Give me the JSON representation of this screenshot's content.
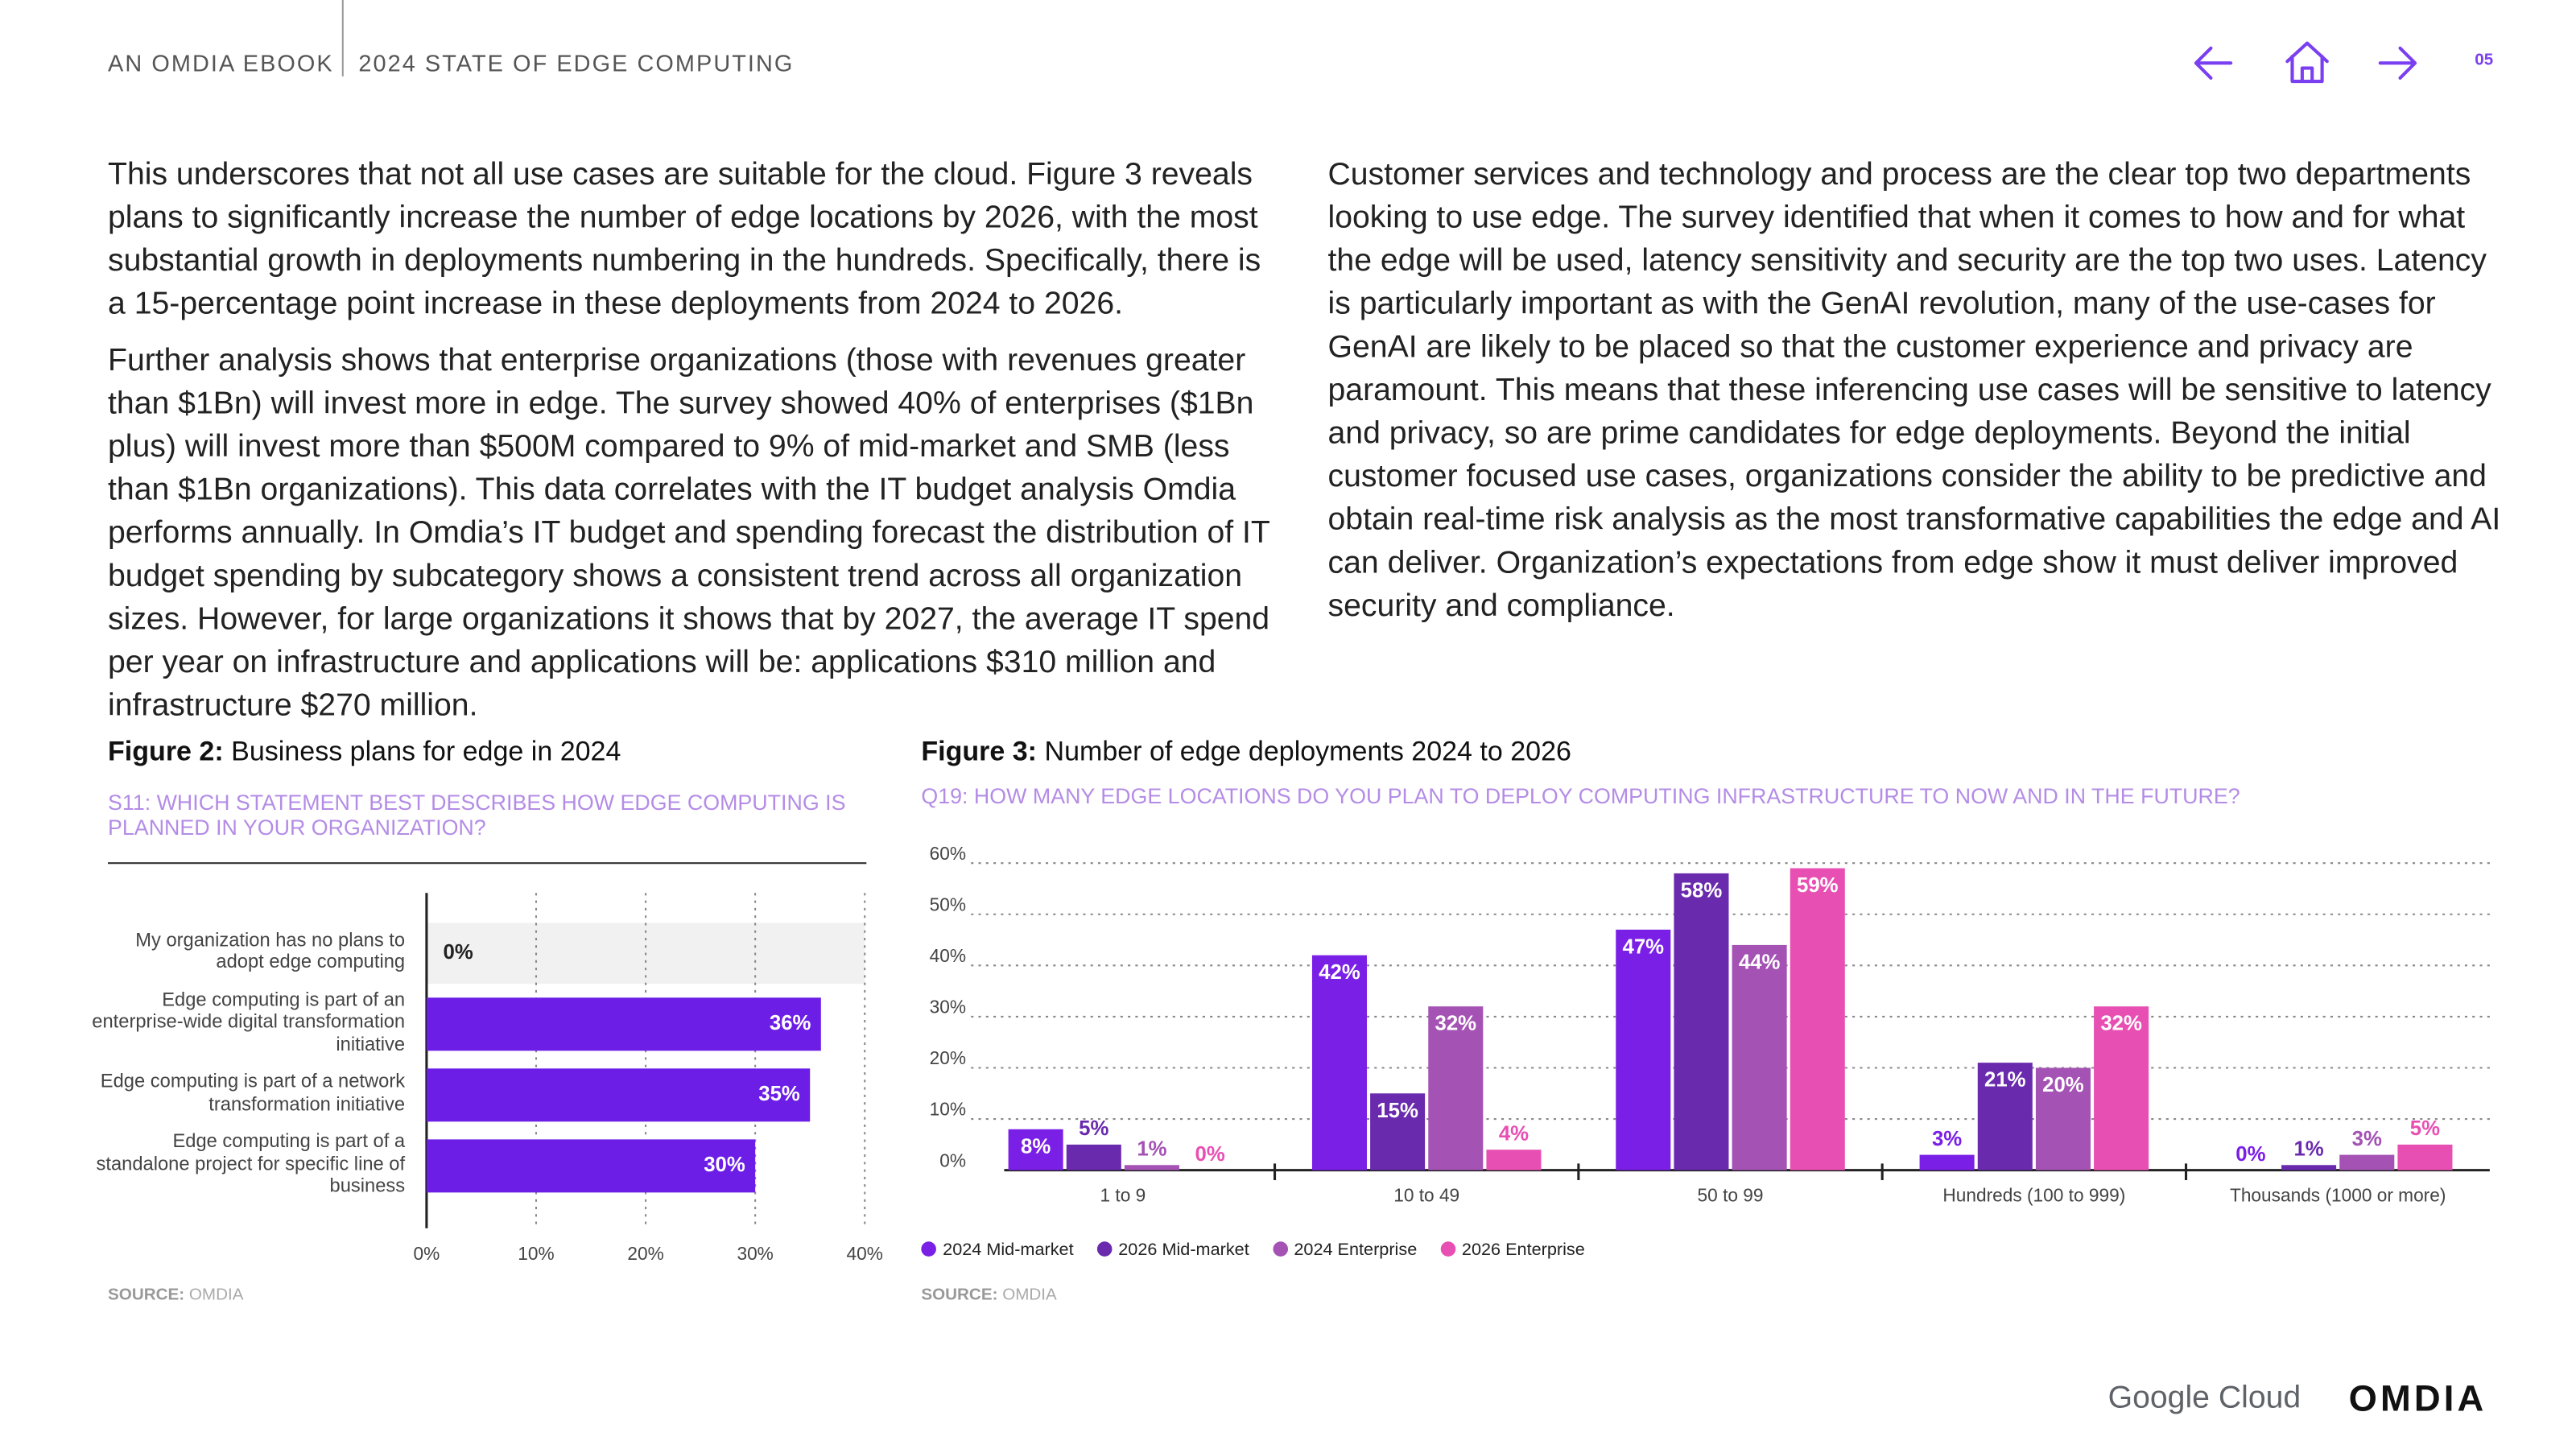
{
  "header": {
    "publisher": "AN OMDIA EBOOK",
    "title": "2024 STATE OF EDGE COMPUTING",
    "page": "05"
  },
  "body": {
    "left": [
      "This underscores that not all use cases are suitable for the cloud. Figure 3 reveals plans to significantly increase the number of edge locations by 2026, with the most substantial growth in deployments numbering in the hundreds. Specifically, there is a 15-percentage point increase in these deployments from 2024 to 2026.",
      "Further analysis shows that enterprise organizations (those with revenues greater than $1Bn) will invest more in edge. The survey showed 40% of enterprises ($1Bn plus) will invest more than $500M compared to 9% of mid-market and SMB (less than $1Bn organizations). This data correlates with the IT budget analysis Omdia performs annually. In Omdia’s IT budget and spending forecast the distribution of IT budget spending by subcategory shows a consistent trend across all organization sizes. However, for large organizations it shows that by 2027, the average IT spend per year on infrastructure and applications will be: applications $310 million and infrastructure $270 million."
    ],
    "right": [
      "Customer services and technology and process are the clear top two departments looking to use edge. The survey identified that when it comes to how and for what the edge will be used, latency sensitivity and security are the top two uses. Latency is particularly important as with the GenAI revolution, many of the use-cases for GenAI are likely to be placed so that the customer experience and privacy are paramount. This means that these inferencing use cases will be sensitive to latency and privacy, so are prime candidates for edge deployments. Beyond the initial customer focused use cases, organizations consider the ability to be predictive and obtain real-time risk analysis as the most transformative capabilities the edge and AI can deliver. Organization’s expectations from edge show it must deliver improved security and compliance."
    ]
  },
  "chart_data": [
    {
      "type": "hbar",
      "figure_label": "Figure 2:",
      "title": "Business plans for edge in 2024",
      "subtitle": "S11: WHICH STATEMENT BEST DESCRIBES HOW EDGE COMPUTING IS PLANNED IN YOUR ORGANIZATION?",
      "categories": [
        "My organization has no plans to adopt edge computing",
        "Edge computing is part of an enterprise-wide digital transformation initiative",
        "Edge computing is part of a network transformation initiative",
        "Edge computing is part of a standalone project for specific line of business"
      ],
      "values": [
        0,
        36,
        35,
        30
      ],
      "value_labels": [
        "0%",
        "36%",
        "35%",
        "30%"
      ],
      "color": "#6c1ee6",
      "xlim": [
        0,
        40
      ],
      "xticks": [
        {
          "value": 0,
          "label": "0%"
        },
        {
          "value": 10,
          "label": "10%"
        },
        {
          "value": 20,
          "label": "20%"
        },
        {
          "value": 30,
          "label": "30%"
        },
        {
          "value": 40,
          "label": "40%"
        }
      ],
      "grid": true,
      "source_label": "SOURCE:",
      "source": "OMDIA"
    },
    {
      "type": "grouped_bar",
      "figure_label": "Figure 3:",
      "title": "Number of edge deployments 2024 to 2026",
      "subtitle": "Q19: HOW MANY EDGE LOCATIONS DO YOU PLAN TO DEPLOY COMPUTING INFRASTRUCTURE TO NOW AND IN THE FUTURE?",
      "categories": [
        "1 to 9",
        "10 to 49",
        "50 to 99",
        "Hundreds (100 to 999)",
        "Thousands (1000 or more)"
      ],
      "series": [
        {
          "name": "2024 Mid-market",
          "color": "#7a1fe6",
          "values": [
            8,
            42,
            47,
            3,
            0
          ],
          "value_labels": [
            "8%",
            "42%",
            "47%",
            "3%",
            "0%"
          ]
        },
        {
          "name": "2026 Mid-market",
          "color": "#6a2aae",
          "values": [
            5,
            15,
            58,
            21,
            1
          ],
          "value_labels": [
            "5%",
            "15%",
            "58%",
            "21%",
            "1%"
          ]
        },
        {
          "name": "2024 Enterprise",
          "color": "#a452b4",
          "values": [
            1,
            32,
            44,
            20,
            3
          ],
          "value_labels": [
            "1%",
            "32%",
            "44%",
            "20%",
            "3%"
          ]
        },
        {
          "name": "2026 Enterprise",
          "color": "#e84fb3",
          "values": [
            0,
            4,
            59,
            32,
            5
          ],
          "value_labels": [
            "0%",
            "4%",
            "59%",
            "32%",
            "5%"
          ]
        }
      ],
      "ylim": [
        0,
        60
      ],
      "yticks": [
        {
          "value": 0,
          "label": "0%"
        },
        {
          "value": 10,
          "label": "10%"
        },
        {
          "value": 20,
          "label": "20%"
        },
        {
          "value": 30,
          "label": "30%"
        },
        {
          "value": 40,
          "label": "40%"
        },
        {
          "value": 50,
          "label": "50%"
        },
        {
          "value": 60,
          "label": "60%"
        }
      ],
      "grid": true,
      "source_label": "SOURCE:",
      "source": "OMDIA"
    }
  ],
  "footer": {
    "logos": [
      "Google Cloud",
      "OMDIA"
    ]
  }
}
